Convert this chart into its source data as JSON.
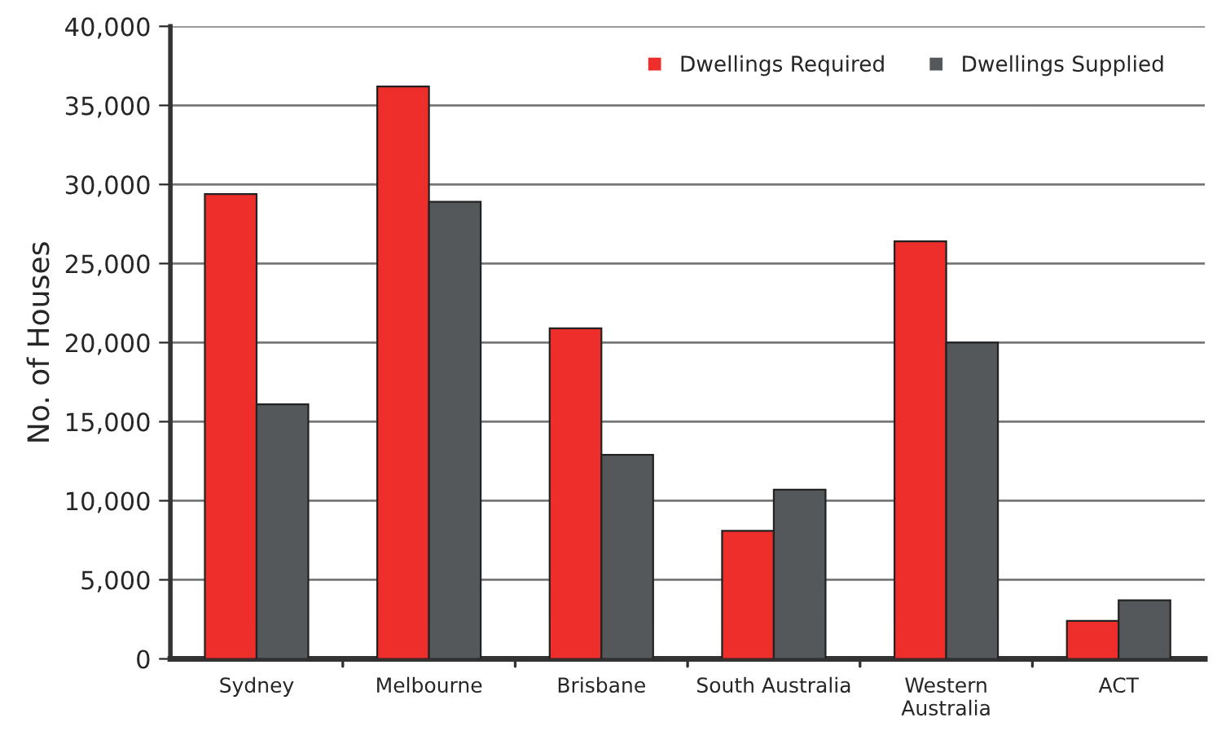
{
  "chart_data": {
    "type": "bar",
    "ylabel": "No. of Houses",
    "categories": [
      "Sydney",
      "Melbourne",
      "Brisbane",
      "South Australia",
      "Western\nAustralia",
      "ACT"
    ],
    "series": [
      {
        "name": "Dwellings Required",
        "color": "#ee2e2a",
        "values": [
          29400,
          36200,
          20900,
          8100,
          26400,
          2400
        ]
      },
      {
        "name": "Dwellings Supplied",
        "color": "#55585b",
        "values": [
          16100,
          28900,
          12900,
          10700,
          20000,
          3700
        ]
      }
    ],
    "ylim": [
      0,
      40000
    ],
    "yticks": [
      0,
      {
        "value": 5000,
        "label": "5,000"
      },
      {
        "value": 10000,
        "label": "10,000"
      },
      {
        "value": 15000,
        "label": "15,000"
      },
      {
        "value": 20000,
        "label": "20,000"
      },
      {
        "value": 25000,
        "label": "25,000"
      },
      {
        "value": 30000,
        "label": "30,000"
      },
      {
        "value": 35000,
        "label": "35,000"
      },
      {
        "value": 40000,
        "label": "40,000"
      }
    ],
    "grid": "y",
    "legend": "top right"
  }
}
